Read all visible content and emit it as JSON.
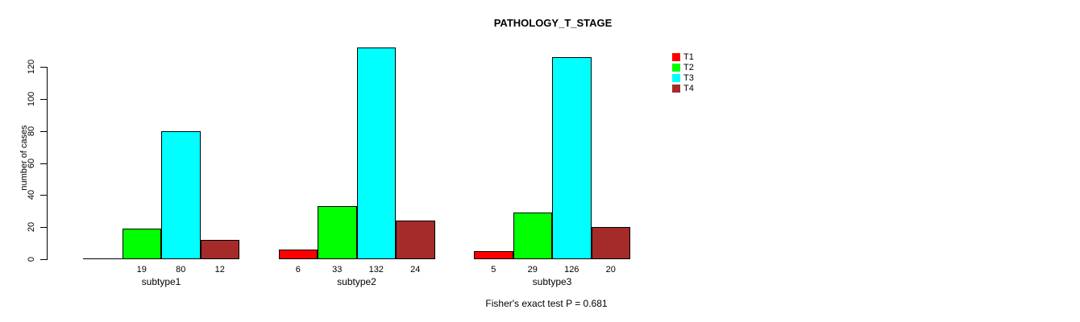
{
  "chart_data": {
    "type": "bar",
    "title": "PATHOLOGY_T_STAGE",
    "xlabel": "",
    "ylabel": "number of cases",
    "categories": [
      "subtype1",
      "subtype2",
      "subtype3"
    ],
    "series": [
      {
        "name": "T1",
        "color": "#FF0000",
        "values": [
          0,
          6,
          5
        ]
      },
      {
        "name": "T2",
        "color": "#00FF00",
        "values": [
          19,
          33,
          29
        ]
      },
      {
        "name": "T3",
        "color": "#00FFFF",
        "values": [
          80,
          132,
          126
        ]
      },
      {
        "name": "T4",
        "color": "#A52A2A",
        "values": [
          12,
          24,
          20
        ]
      }
    ],
    "value_labels": [
      [
        "",
        "19",
        "80",
        "12"
      ],
      [
        "6",
        "33",
        "132",
        "24"
      ],
      [
        "5",
        "29",
        "126",
        "20"
      ]
    ],
    "yticks": [
      0,
      20,
      40,
      60,
      80,
      100,
      120
    ],
    "ylim": [
      0,
      135
    ],
    "grid": false,
    "legend_position": "right",
    "legend_entries": [
      "T1",
      "T2",
      "T3",
      "T4"
    ],
    "annotation": "Fisher's exact test P = 0.681",
    "axis_color": "#000000",
    "background_color": "#FFFFFF"
  }
}
